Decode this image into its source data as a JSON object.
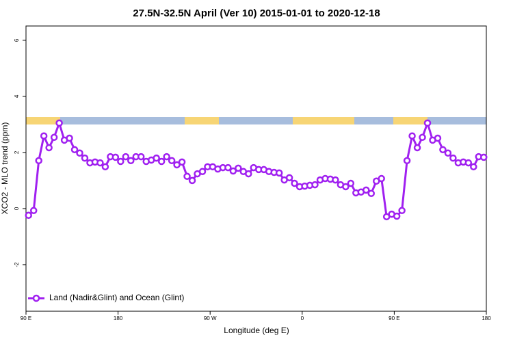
{
  "chart_data": {
    "type": "line",
    "title": "27.5N-32.5N April (Ver 10)   2015-01-01 to 2020-12-18",
    "x_label": "Longitude (deg E)",
    "y_label": "XCO2 - MLO trend (ppm)",
    "xlim": [
      90,
      540
    ],
    "ylim": [
      -3.66,
      6.51
    ],
    "xticks": [
      {
        "value": 90,
        "label": "90 E"
      },
      180,
      {
        "value": 270,
        "label": "90 W"
      },
      {
        "value": 360,
        "label": "0"
      },
      {
        "value": 450,
        "label": "90 E"
      },
      {
        "value": 540,
        "label": "180"
      }
    ],
    "yticks": [
      -2,
      0,
      2,
      4,
      6
    ],
    "legend": "bottom-left",
    "x": [
      92.5,
      97.5,
      102.5,
      107.5,
      112.5,
      117.5,
      122.5,
      127.5,
      132.5,
      137.5,
      142.5,
      147.5,
      152.5,
      157.5,
      162.5,
      167.5,
      172.5,
      177.5,
      182.5,
      187.5,
      192.5,
      197.5,
      202.5,
      207.5,
      212.5,
      217.5,
      222.5,
      227.5,
      232.5,
      237.5,
      242.5,
      247.5,
      252.5,
      257.5,
      262.5,
      267.5,
      272.5,
      277.5,
      282.5,
      287.5,
      292.5,
      297.5,
      302.5,
      307.5,
      312.5,
      317.5,
      322.5,
      327.5,
      332.5,
      337.5,
      342.5,
      347.5,
      352.5,
      357.5,
      362.5,
      367.5,
      372.5,
      377.5,
      382.5,
      387.5,
      392.5,
      397.5,
      402.5,
      407.5,
      412.5,
      417.5,
      422.5,
      427.5,
      432.5,
      437.5,
      442.5,
      447.5,
      452.5,
      457.5,
      462.5,
      467.5,
      472.5,
      477.5,
      482.5,
      487.5,
      492.5,
      497.5,
      502.5,
      507.5,
      512.5,
      517.5,
      522.5,
      527.5,
      532.5,
      537.5
    ],
    "series": [
      {
        "name": "Land (Nadir&Glint) and Ocean (Glint)",
        "color": "#a020f0",
        "values": [
          -0.24,
          -0.07,
          1.71,
          2.59,
          2.17,
          2.54,
          3.05,
          2.44,
          2.51,
          2.1,
          1.98,
          1.8,
          1.63,
          1.66,
          1.63,
          1.49,
          1.85,
          1.83,
          1.68,
          1.85,
          1.71,
          1.85,
          1.85,
          1.68,
          1.73,
          1.8,
          1.68,
          1.85,
          1.71,
          1.56,
          1.66,
          1.15,
          1.0,
          1.24,
          1.32,
          1.49,
          1.49,
          1.41,
          1.46,
          1.46,
          1.34,
          1.44,
          1.32,
          1.24,
          1.46,
          1.39,
          1.39,
          1.32,
          1.29,
          1.27,
          1.02,
          1.1,
          0.9,
          0.78,
          0.8,
          0.83,
          0.85,
          1.02,
          1.07,
          1.05,
          1.02,
          0.85,
          0.78,
          0.9,
          0.56,
          0.59,
          0.66,
          0.54,
          0.98,
          1.07,
          -0.29,
          -0.2,
          -0.27,
          -0.07,
          1.71,
          2.59,
          2.17,
          2.54,
          3.05,
          2.44,
          2.51,
          2.1,
          1.98,
          1.8,
          1.63,
          1.66,
          1.63,
          1.49,
          1.85,
          1.83
        ]
      }
    ]
  }
}
